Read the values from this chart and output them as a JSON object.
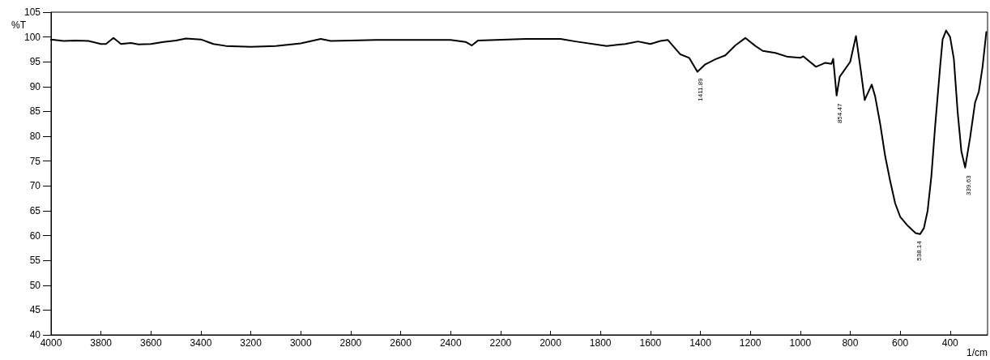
{
  "chart_data": {
    "type": "line",
    "xlabel": "1/cm",
    "ylabel": "%T",
    "x": [
      4000,
      3950,
      3900,
      3850,
      3800,
      3780,
      3750,
      3720,
      3680,
      3650,
      3600,
      3550,
      3500,
      3460,
      3400,
      3350,
      3300,
      3200,
      3100,
      3000,
      2920,
      2880,
      2800,
      2700,
      2400,
      2340,
      2315,
      2290,
      2100,
      1960,
      1900,
      1775,
      1700,
      1650,
      1600,
      1560,
      1530,
      1480,
      1445,
      1411.89,
      1380,
      1340,
      1300,
      1260,
      1220,
      1180,
      1150,
      1100,
      1050,
      1000,
      988,
      937,
      900,
      875,
      868,
      854.47,
      842,
      800,
      777,
      757,
      742,
      714,
      700,
      680,
      660,
      640,
      620,
      600,
      570,
      538.14,
      520,
      505,
      490,
      475,
      460,
      440,
      430,
      416,
      400,
      385,
      370,
      355,
      339.63,
      320,
      300,
      285,
      270,
      255
    ],
    "values": [
      99.5,
      99.2,
      99.3,
      99.2,
      98.6,
      98.6,
      99.8,
      98.6,
      98.8,
      98.5,
      98.6,
      99.0,
      99.3,
      99.7,
      99.5,
      98.6,
      98.2,
      98.0,
      98.2,
      98.7,
      99.6,
      99.2,
      99.3,
      99.4,
      99.4,
      99.0,
      98.3,
      99.3,
      99.6,
      99.6,
      99.1,
      98.2,
      98.6,
      99.1,
      98.6,
      99.2,
      99.4,
      96.5,
      95.8,
      93.0,
      94.5,
      95.5,
      96.3,
      98.3,
      99.8,
      98.2,
      97.2,
      96.8,
      96.0,
      95.8,
      96.1,
      94.0,
      94.8,
      94.6,
      95.6,
      88.2,
      92.0,
      95.0,
      100.2,
      93.0,
      87.3,
      90.4,
      88.0,
      82.5,
      76.0,
      71.0,
      66.5,
      63.8,
      62.0,
      60.5,
      60.3,
      61.5,
      65.0,
      72.0,
      82.0,
      94.0,
      99.5,
      101.3,
      100.0,
      95.6,
      85.0,
      77.0,
      73.7,
      79.7,
      86.8,
      89.0,
      94.0,
      101.0
    ],
    "color": "#000000",
    "xlim": [
      4000,
      250
    ],
    "xticks": [
      4000,
      3800,
      3600,
      3400,
      3200,
      3000,
      2800,
      2600,
      2400,
      2200,
      2000,
      1800,
      1600,
      1400,
      1200,
      1000,
      800,
      600,
      400
    ],
    "ylim": [
      40,
      105
    ],
    "yticks": [
      40,
      45,
      50,
      55,
      60,
      65,
      70,
      75,
      80,
      85,
      90,
      95,
      100,
      105
    ],
    "grid": false,
    "marker": "none",
    "line_style": "solid",
    "annotations": [
      {
        "text": "1411.89",
        "x": 1411.89,
        "y": 93.0
      },
      {
        "text": "854.47",
        "x": 854.47,
        "y": 88.2
      },
      {
        "text": "538.14",
        "x": 538.14,
        "y": 60.5
      },
      {
        "text": "339.63",
        "x": 339.63,
        "y": 73.7
      }
    ]
  }
}
